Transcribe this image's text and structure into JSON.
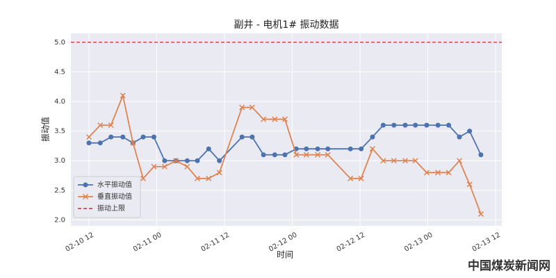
{
  "chart_data": {
    "type": "line",
    "title": "副井 - 电机1# 振动数据",
    "xlabel": "时间",
    "ylabel": "振动值",
    "x": [
      12,
      14.0,
      15.9,
      18.0,
      19.8,
      21.6,
      23.5,
      25.4,
      27.4,
      29.4,
      31.2,
      33.2,
      35.1,
      39.1,
      40.9,
      42.9,
      44.9,
      46.7,
      48.7,
      50.5,
      52.5,
      54.3,
      58.3,
      60.2,
      62.2,
      64.1,
      66.0,
      68.0,
      69.8,
      71.8,
      73.8,
      75.7,
      77.6,
      79.4,
      81.4
    ],
    "series": [
      {
        "name": "水平振动值",
        "color": "#4c72b0",
        "marker": "circle",
        "values": [
          3.3,
          3.3,
          3.4,
          3.4,
          3.3,
          3.4,
          3.4,
          3.0,
          3.0,
          3.0,
          3.0,
          3.2,
          3.0,
          3.4,
          3.4,
          3.1,
          3.1,
          3.1,
          3.2,
          3.2,
          3.2,
          3.2,
          3.2,
          3.2,
          3.4,
          3.6,
          3.6,
          3.6,
          3.6,
          3.6,
          3.6,
          3.6,
          3.4,
          3.5,
          3.1
        ]
      },
      {
        "name": "垂直振动值",
        "color": "#dd8452",
        "marker": "x",
        "values": [
          3.4,
          3.6,
          3.6,
          4.1,
          3.3,
          2.7,
          2.9,
          2.9,
          3.0,
          2.9,
          2.7,
          2.7,
          2.8,
          3.9,
          3.9,
          3.7,
          3.7,
          3.7,
          3.1,
          3.1,
          3.1,
          3.1,
          2.7,
          2.7,
          3.2,
          3.0,
          3.0,
          3.0,
          3.0,
          2.8,
          2.8,
          2.8,
          3.0,
          2.6,
          2.1
        ]
      }
    ],
    "hlines": [
      {
        "name": "振动上限",
        "color": "#c44e52",
        "value": 5.0
      }
    ],
    "xlim": [
      8.8,
      85.1
    ],
    "xticks": [
      {
        "value": 12,
        "label": "02-10 12"
      },
      {
        "value": 24,
        "label": "02-11 00"
      },
      {
        "value": 36,
        "label": "02-11 12"
      },
      {
        "value": 48,
        "label": "02-12 00"
      },
      {
        "value": 60,
        "label": "02-12 12"
      },
      {
        "value": 72,
        "label": "02-13 00"
      },
      {
        "value": 84,
        "label": "02-13 12"
      }
    ],
    "ylim": [
      1.9,
      5.15
    ],
    "yticks": [
      {
        "value": 2,
        "label": "2.0"
      },
      2.5,
      {
        "value": 3,
        "label": "3.0"
      },
      3.5,
      {
        "value": 4,
        "label": "4.0"
      },
      4.5,
      {
        "value": 5,
        "label": "5.0"
      }
    ],
    "grid": true,
    "legend": "lower left",
    "watermark": "中国煤炭新闻网"
  }
}
